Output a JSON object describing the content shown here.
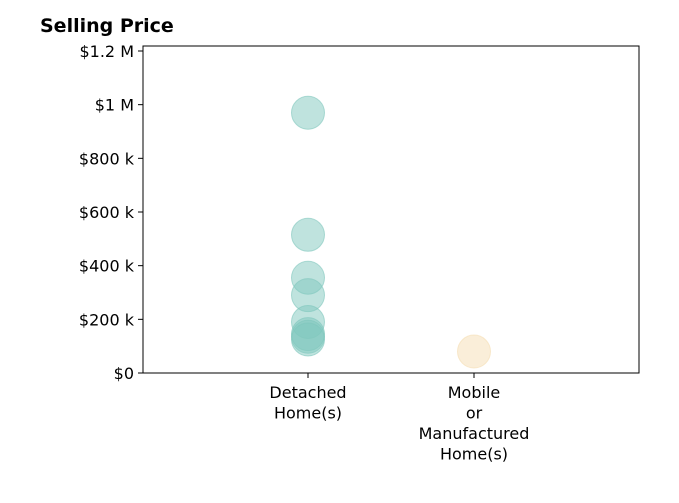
{
  "chart_data": {
    "type": "scatter",
    "title": "Selling Price",
    "xlabel": "",
    "ylabel": "",
    "categories": [
      [
        "Detached",
        "Home(s)"
      ],
      [
        "Mobile",
        "or",
        "Manufactured",
        "Home(s)"
      ]
    ],
    "series": [
      {
        "category_index": 0,
        "color": "#7fc7bd",
        "values": [
          970000,
          515000,
          355000,
          290000,
          190000,
          145000,
          135000,
          125000
        ]
      },
      {
        "category_index": 1,
        "color": "#f5deb3",
        "values": [
          80000
        ]
      }
    ],
    "ylim": [
      0,
      1200000
    ],
    "yticks": [
      0,
      200000,
      400000,
      600000,
      800000,
      1000000,
      1200000
    ],
    "ytick_labels": [
      "$0",
      "$200 k",
      "$400 k",
      "$600 k",
      "$800 k",
      "$1 M",
      "$1.2 M"
    ],
    "grid": false,
    "legend": "none"
  }
}
